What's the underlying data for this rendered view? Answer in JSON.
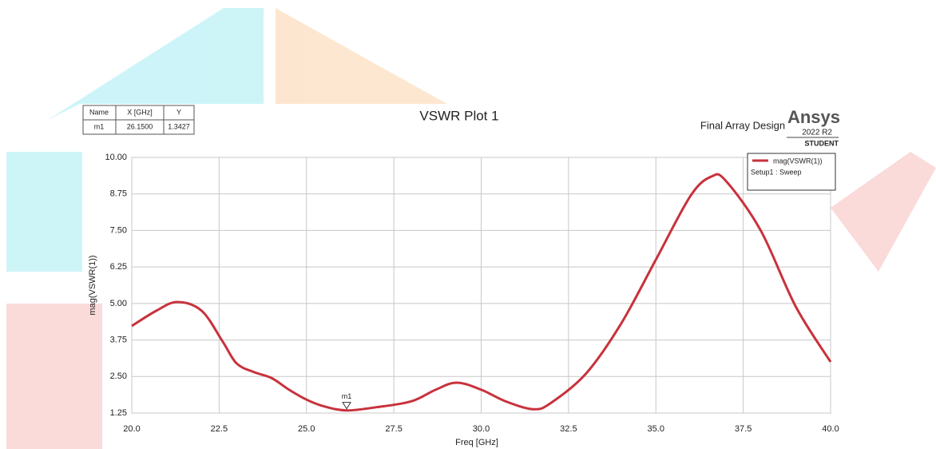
{
  "chart_data": {
    "type": "line",
    "title": "VSWR Plot 1",
    "subtitle": "Final Array Design",
    "brand": "Ansys",
    "version": "2022 R2",
    "edition": "STUDENT",
    "x_label": "Freq [GHz]",
    "y_label": "mag(VSWR(1))",
    "legend_note": "Setup1 : Sweep",
    "legend": "upper-right",
    "grid": true,
    "xlim": [
      20,
      40
    ],
    "xticks": [
      {
        "value": 20,
        "label": "20.0"
      },
      22.5,
      {
        "value": 25,
        "label": "25.0"
      },
      27.5,
      {
        "value": 30,
        "label": "30.0"
      },
      32.5,
      {
        "value": 35,
        "label": "35.0"
      },
      37.5,
      {
        "value": 40,
        "label": "40.0"
      }
    ],
    "ylim": [
      1.25,
      10
    ],
    "yticks": [
      1.25,
      {
        "value": 2.5,
        "label": "2.50"
      },
      3.75,
      {
        "value": 5,
        "label": "5.00"
      },
      6.25,
      {
        "value": 7.5,
        "label": "7.50"
      },
      8.75,
      {
        "value": 10,
        "label": "10.00"
      }
    ],
    "x": [
      20,
      20.7,
      21.3,
      22,
      22.6,
      23,
      23.5,
      24,
      24.5,
      25,
      25.5,
      26.15,
      27,
      28,
      28.7,
      29.3,
      30,
      30.7,
      31.5,
      32,
      33,
      34,
      35,
      36,
      36.6,
      37,
      38,
      39,
      40
    ],
    "series": [
      {
        "name": "mag(VSWR(1))",
        "color": "#c8323c",
        "values": [
          4.23,
          4.75,
          5.05,
          4.75,
          3.7,
          2.95,
          2.65,
          2.45,
          2.05,
          1.71,
          1.48,
          1.34,
          1.45,
          1.65,
          2.05,
          2.29,
          2.05,
          1.65,
          1.38,
          1.6,
          2.6,
          4.3,
          6.5,
          8.7,
          9.35,
          9.2,
          7.5,
          4.9,
          3.0
        ]
      }
    ],
    "markers": [
      {
        "name": "m1",
        "x": 26.15,
        "y": 1.3427
      }
    ],
    "marker_table": {
      "columns": [
        "Name",
        "X [GHz]",
        "Y"
      ],
      "rows": [
        [
          "m1",
          "26.1500",
          "1.3427"
        ]
      ]
    }
  }
}
